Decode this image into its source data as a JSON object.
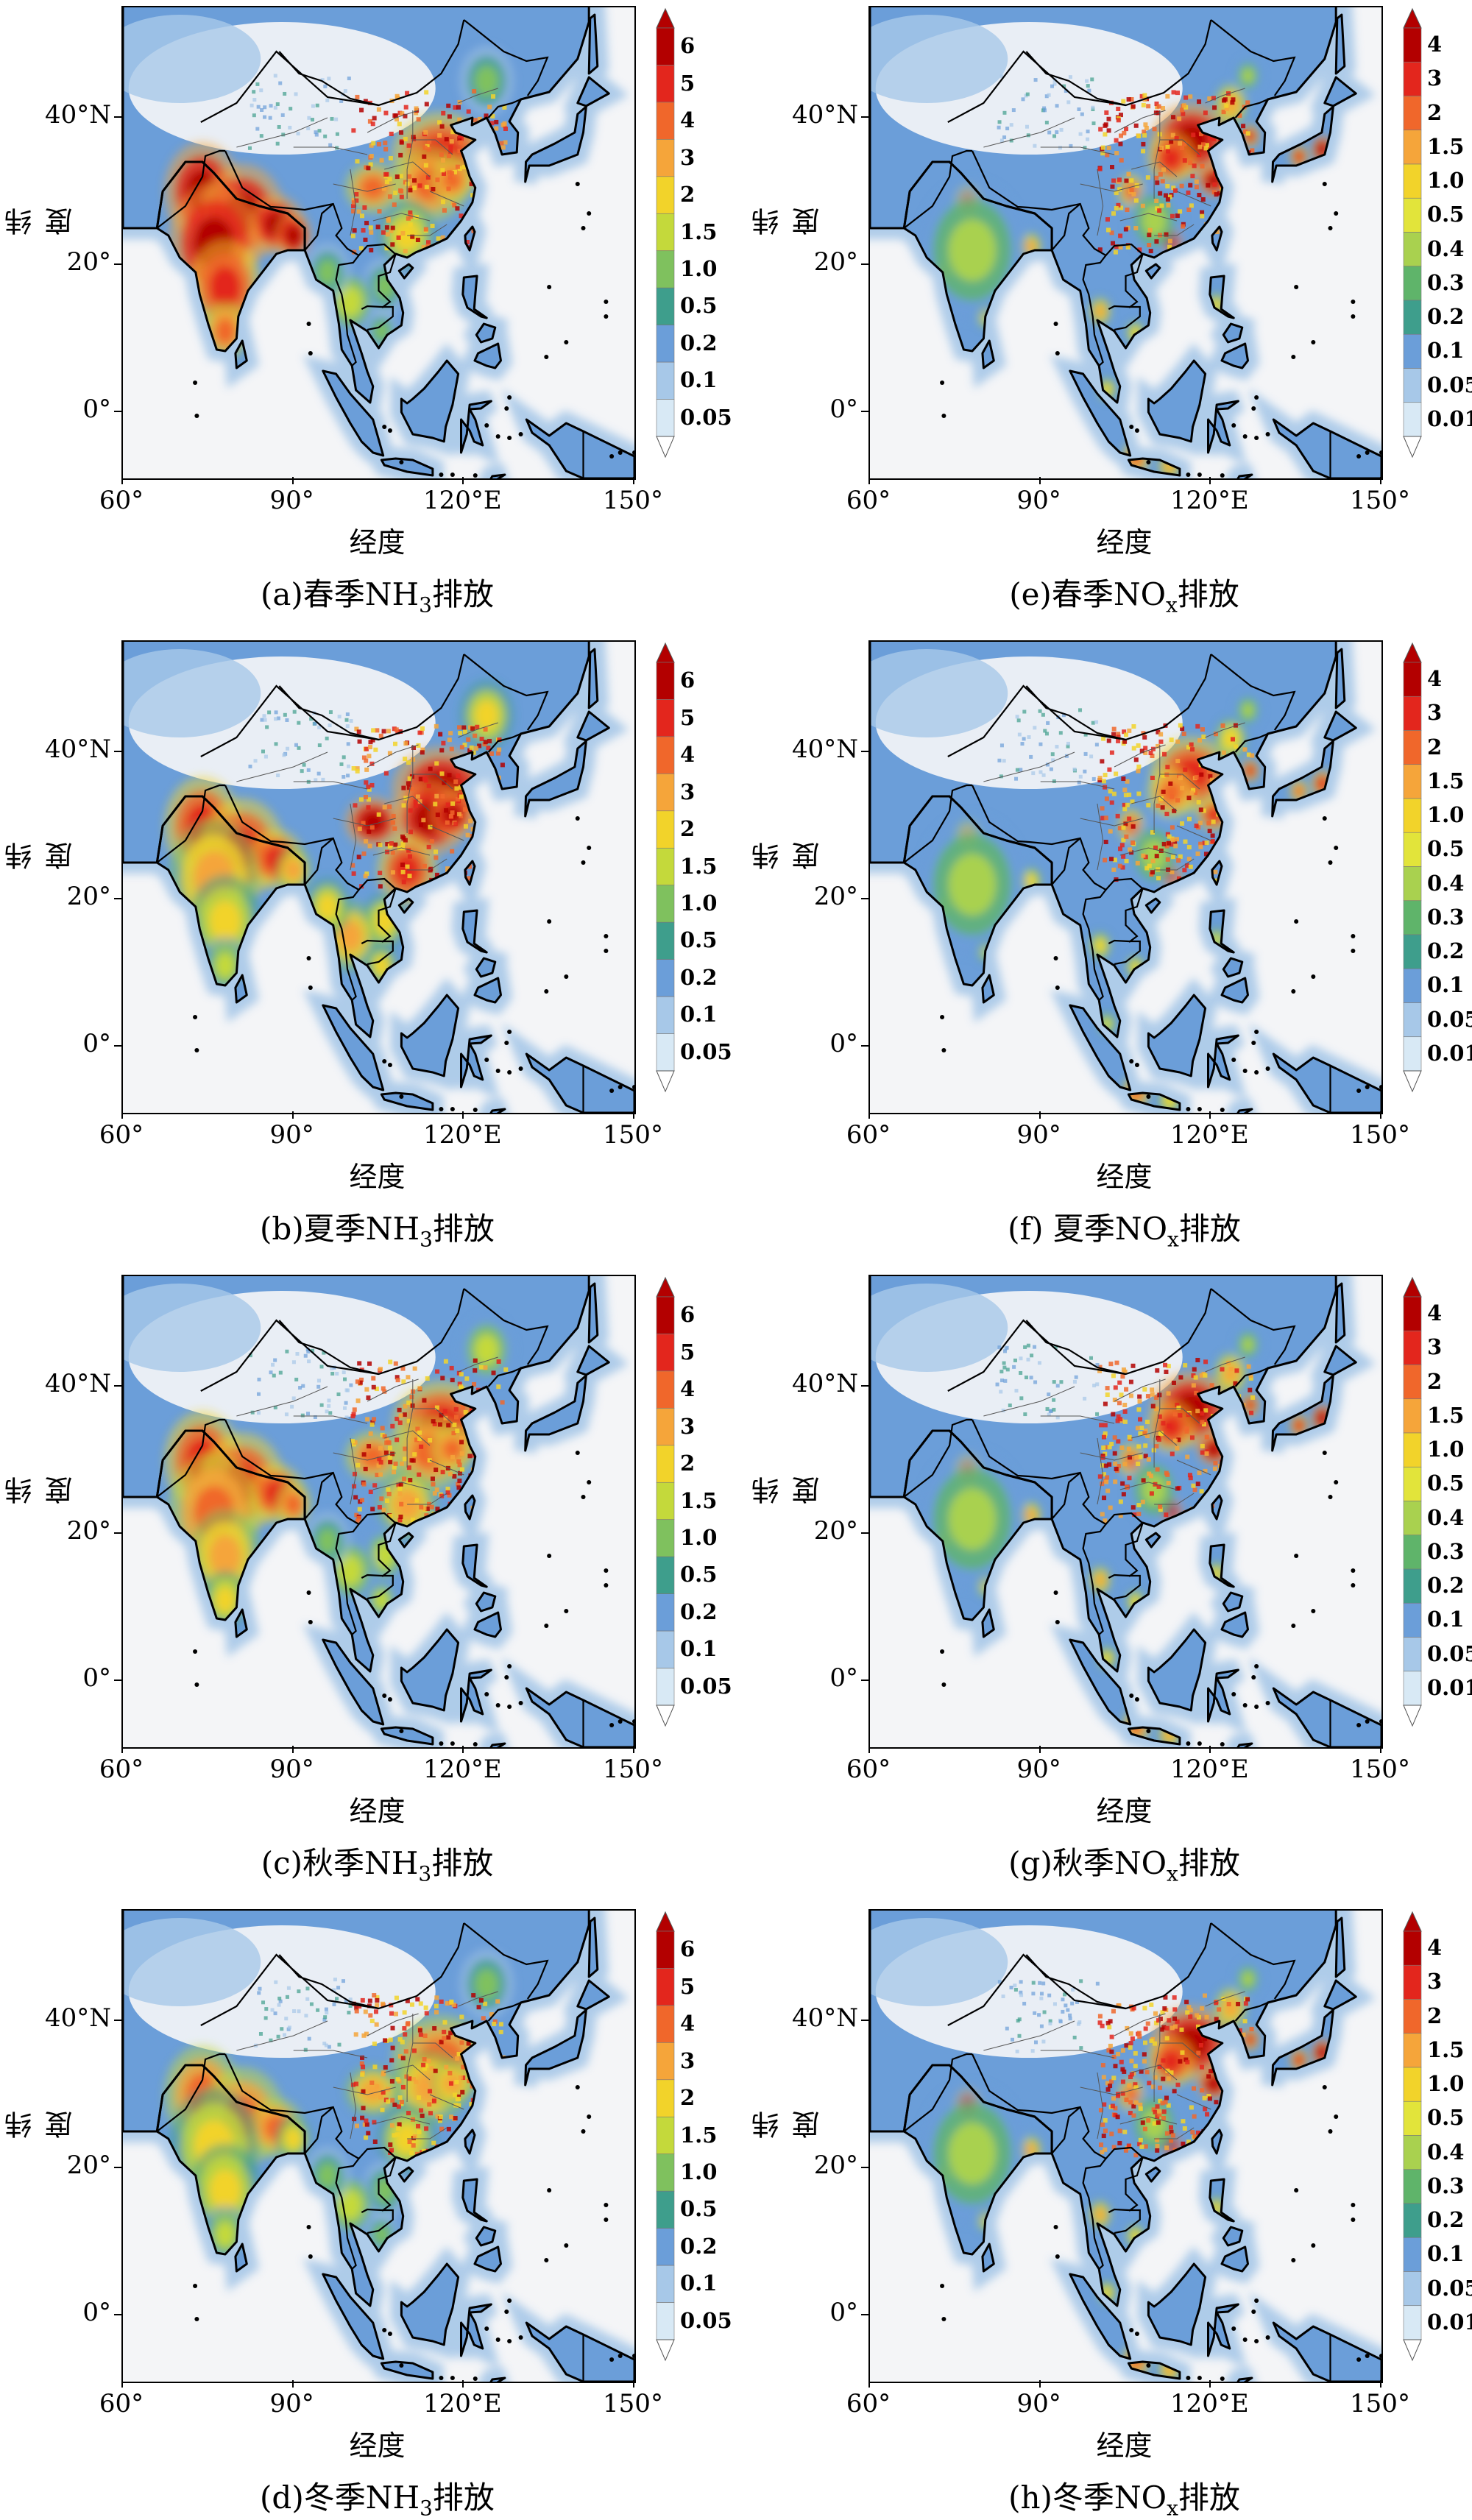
{
  "figure": {
    "axis_labels": {
      "x": "经度",
      "y": "纬度"
    },
    "x_ticks": [
      "60°",
      "90°",
      "120°E",
      "150°"
    ],
    "y_ticks": [
      "40°N",
      "20°",
      "0°"
    ],
    "panels": [
      {
        "id": "a",
        "caption_prefix": "(a)春季NH",
        "caption_sub": "3",
        "caption_suffix": "排放",
        "species": "NH3",
        "season": "spring",
        "colorbar": [
          "6",
          "5",
          "4",
          "3",
          "2",
          "1.5",
          "1.0",
          "0.5",
          "0.2",
          "0.1",
          "0.05"
        ]
      },
      {
        "id": "e",
        "caption_prefix": "(e)春季NO",
        "caption_sub": "x",
        "caption_suffix": "排放",
        "species": "NOx",
        "season": "spring",
        "colorbar": [
          "4",
          "3",
          "2",
          "1.5",
          "1.0",
          "0.5",
          "0.4",
          "0.3",
          "0.2",
          "0.1",
          "0.05",
          "0.01"
        ]
      },
      {
        "id": "b",
        "caption_prefix": "(b)夏季NH",
        "caption_sub": "3",
        "caption_suffix": "排放",
        "species": "NH3",
        "season": "summer",
        "colorbar": [
          "6",
          "5",
          "4",
          "3",
          "2",
          "1.5",
          "1.0",
          "0.5",
          "0.2",
          "0.1",
          "0.05"
        ]
      },
      {
        "id": "f",
        "caption_prefix": "(f) 夏季NO",
        "caption_sub": "x",
        "caption_suffix": "排放",
        "species": "NOx",
        "season": "summer",
        "colorbar": [
          "4",
          "3",
          "2",
          "1.5",
          "1.0",
          "0.5",
          "0.4",
          "0.3",
          "0.2",
          "0.1",
          "0.05",
          "0.01"
        ]
      },
      {
        "id": "c",
        "caption_prefix": "(c)秋季NH",
        "caption_sub": "3",
        "caption_suffix": "排放",
        "species": "NH3",
        "season": "autumn",
        "colorbar": [
          "6",
          "5",
          "4",
          "3",
          "2",
          "1.5",
          "1.0",
          "0.5",
          "0.2",
          "0.1",
          "0.05"
        ]
      },
      {
        "id": "g",
        "caption_prefix": "(g)秋季NO",
        "caption_sub": "x",
        "caption_suffix": "排放",
        "species": "NOx",
        "season": "autumn",
        "colorbar": [
          "4",
          "3",
          "2",
          "1.5",
          "1.0",
          "0.5",
          "0.4",
          "0.3",
          "0.2",
          "0.1",
          "0.05",
          "0.01"
        ]
      },
      {
        "id": "d",
        "caption_prefix": "(d)冬季NH",
        "caption_sub": "3",
        "caption_suffix": "排放",
        "species": "NH3",
        "season": "winter",
        "colorbar": [
          "6",
          "5",
          "4",
          "3",
          "2",
          "1.5",
          "1.0",
          "0.5",
          "0.2",
          "0.1",
          "0.05"
        ]
      },
      {
        "id": "h",
        "caption_prefix": "(h)冬季NO",
        "caption_sub": "x",
        "caption_suffix": "排放",
        "species": "NOx",
        "season": "winter",
        "colorbar": [
          "4",
          "3",
          "2",
          "1.5",
          "1.0",
          "0.5",
          "0.4",
          "0.3",
          "0.2",
          "0.1",
          "0.05",
          "0.01"
        ]
      }
    ],
    "colors": {
      "nh3_scale": [
        "#b30000",
        "#e3261d",
        "#f0672b",
        "#f5a53a",
        "#f2d32a",
        "#c4d93b",
        "#7fc15e",
        "#3e9e8c",
        "#6b9ed9",
        "#a7c8e8",
        "#d8e9f5",
        "#f4f5f7"
      ],
      "nox_scale": [
        "#b30000",
        "#e3261d",
        "#f0672b",
        "#f5a53a",
        "#f2d32a",
        "#e2e43a",
        "#a9d14f",
        "#5fb46a",
        "#3e9e8c",
        "#6b9ed9",
        "#a7c8e8",
        "#d8e9f5",
        "#f4f5f7"
      ]
    }
  }
}
